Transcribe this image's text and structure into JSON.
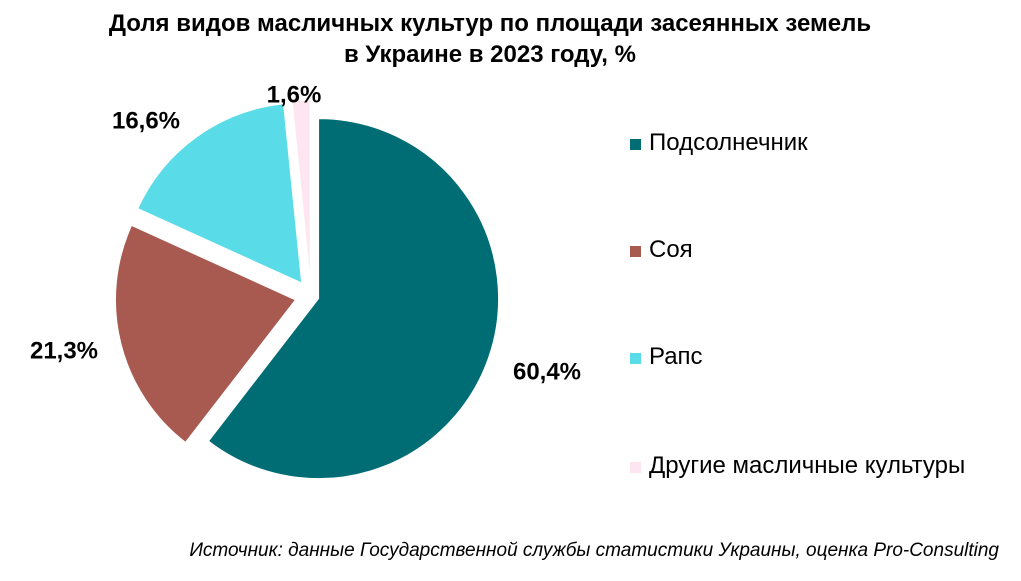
{
  "chart_data": {
    "type": "pie",
    "title_line1": "Доля видов масличных культур по площади засеянных земель",
    "title_line2": "в Украине в 2023 году, %",
    "categories": [
      "Подсолнечник",
      "Соя",
      "Рапс",
      "Другие масличные культуры"
    ],
    "values": [
      60.4,
      21.3,
      16.6,
      1.6
    ],
    "value_labels": [
      "60,4%",
      "21,3%",
      "16,6%",
      "1,6%"
    ],
    "colors": [
      "#006D75",
      "#A85A50",
      "#5ADCE8",
      "#FDE6EF"
    ],
    "legend_position": "right",
    "exploded": true
  },
  "source": "Источник: данные Государственной службы статистики Украины, оценка Pro-Consulting"
}
